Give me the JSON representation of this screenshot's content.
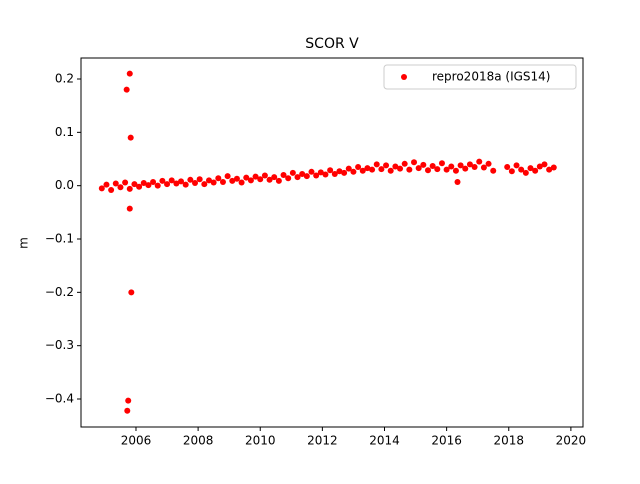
{
  "chart_data": {
    "type": "scatter",
    "title": "SCOR V",
    "y_label": "m",
    "xlim": [
      2004.23,
      2020.39
    ],
    "xticks": [
      2006,
      2008,
      2010,
      2012,
      2014,
      2016,
      2018,
      2020
    ],
    "ylim": [
      -0.4525,
      0.2394
    ],
    "yticks": [
      {
        "value": -0.4,
        "label": "−0.4"
      },
      {
        "value": -0.3,
        "label": "−0.3"
      },
      {
        "value": -0.2,
        "label": "−0.2"
      },
      {
        "value": -0.1,
        "label": "−0.1"
      },
      {
        "value": 0.0,
        "label": "0.0"
      },
      0.1,
      0.2
    ],
    "grid": false,
    "legend": "upper right",
    "series": [
      {
        "name": "repro2018a (IGS14)",
        "color": "#ff0000",
        "x": [
          2004.9,
          2005.05,
          2005.2,
          2005.35,
          2005.5,
          2005.65,
          2005.8,
          2005.95,
          2006.1,
          2006.25,
          2006.4,
          2006.55,
          2006.7,
          2006.85,
          2007.0,
          2007.15,
          2007.3,
          2007.45,
          2007.6,
          2007.75,
          2007.9,
          2008.05,
          2008.2,
          2008.35,
          2008.5,
          2008.65,
          2008.8,
          2008.95,
          2009.1,
          2009.25,
          2009.4,
          2009.55,
          2009.7,
          2009.85,
          2010.0,
          2010.15,
          2010.3,
          2010.45,
          2010.6,
          2010.75,
          2010.9,
          2011.05,
          2011.2,
          2011.35,
          2011.5,
          2011.65,
          2011.8,
          2011.95,
          2012.1,
          2012.25,
          2012.4,
          2012.55,
          2012.7,
          2012.85,
          2013.0,
          2013.15,
          2013.3,
          2013.45,
          2013.6,
          2013.75,
          2013.9,
          2014.05,
          2014.2,
          2014.35,
          2014.5,
          2014.65,
          2014.8,
          2014.95,
          2015.1,
          2015.25,
          2015.4,
          2015.55,
          2015.7,
          2015.85,
          2016.0,
          2016.15,
          2016.3,
          2016.45,
          2016.6,
          2016.75,
          2016.9,
          2017.05,
          2017.2,
          2017.35,
          2017.5,
          2017.95,
          2018.1,
          2018.25,
          2018.4,
          2018.55,
          2018.7,
          2018.85,
          2019.0,
          2019.15,
          2019.3,
          2019.45,
          2005.7,
          2005.8,
          2005.83,
          2005.8,
          2005.85,
          2005.75,
          2005.72,
          2016.35
        ],
        "values": [
          -0.005,
          0.002,
          -0.008,
          0.004,
          -0.003,
          0.006,
          -0.006,
          0.003,
          -0.002,
          0.005,
          0.001,
          0.007,
          0.0,
          0.009,
          0.003,
          0.01,
          0.004,
          0.008,
          0.002,
          0.011,
          0.005,
          0.012,
          0.003,
          0.01,
          0.006,
          0.014,
          0.007,
          0.018,
          0.009,
          0.013,
          0.006,
          0.015,
          0.01,
          0.017,
          0.012,
          0.019,
          0.011,
          0.016,
          0.009,
          0.02,
          0.014,
          0.024,
          0.016,
          0.022,
          0.018,
          0.026,
          0.019,
          0.025,
          0.021,
          0.029,
          0.022,
          0.027,
          0.024,
          0.032,
          0.026,
          0.035,
          0.028,
          0.033,
          0.03,
          0.04,
          0.031,
          0.038,
          0.028,
          0.036,
          0.032,
          0.041,
          0.03,
          0.044,
          0.033,
          0.039,
          0.029,
          0.037,
          0.031,
          0.042,
          0.03,
          0.036,
          0.028,
          0.038,
          0.032,
          0.04,
          0.035,
          0.045,
          0.034,
          0.041,
          0.028,
          0.035,
          0.027,
          0.038,
          0.03,
          0.024,
          0.033,
          0.028,
          0.036,
          0.04,
          0.03,
          0.034,
          0.18,
          0.21,
          0.09,
          -0.043,
          -0.2,
          -0.403,
          -0.422,
          0.007
        ]
      }
    ]
  }
}
